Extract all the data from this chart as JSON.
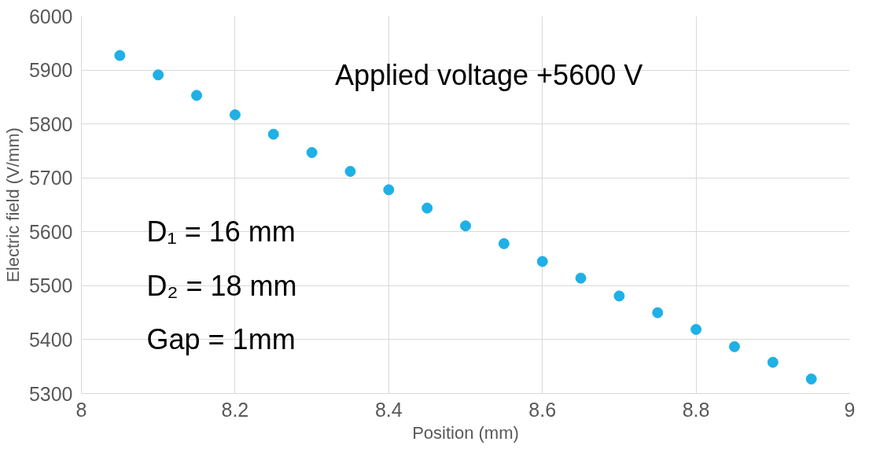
{
  "chart_data": {
    "type": "scatter",
    "xlabel": "Position (mm)",
    "ylabel": "Electric field (V/mm)",
    "x": [
      8.05,
      8.1,
      8.15,
      8.2,
      8.25,
      8.3,
      8.35,
      8.4,
      8.45,
      8.5,
      8.55,
      8.6,
      8.65,
      8.7,
      8.75,
      8.8,
      8.85,
      8.9,
      8.95
    ],
    "series": [
      {
        "color": "#1fb0e6",
        "values": [
          5927,
          5891,
          5853,
          5817,
          5781,
          5747,
          5712,
          5678,
          5644,
          5611,
          5578,
          5545,
          5514,
          5481,
          5450,
          5419,
          5387,
          5358,
          5327
        ]
      }
    ],
    "xlim": [
      8,
      9
    ],
    "xticks": [
      8,
      8.2,
      8.4,
      8.6,
      8.8,
      9
    ],
    "ylim": [
      5300,
      6000
    ],
    "yticks": [
      5300,
      5400,
      5500,
      5600,
      5700,
      5800,
      5900,
      6000
    ],
    "grid": true,
    "marker": "circle",
    "annotations": [
      "Applied voltage +5600 V",
      "D₁ = 16 mm",
      "D₂ = 18 mm",
      "Gap = 1mm"
    ]
  }
}
